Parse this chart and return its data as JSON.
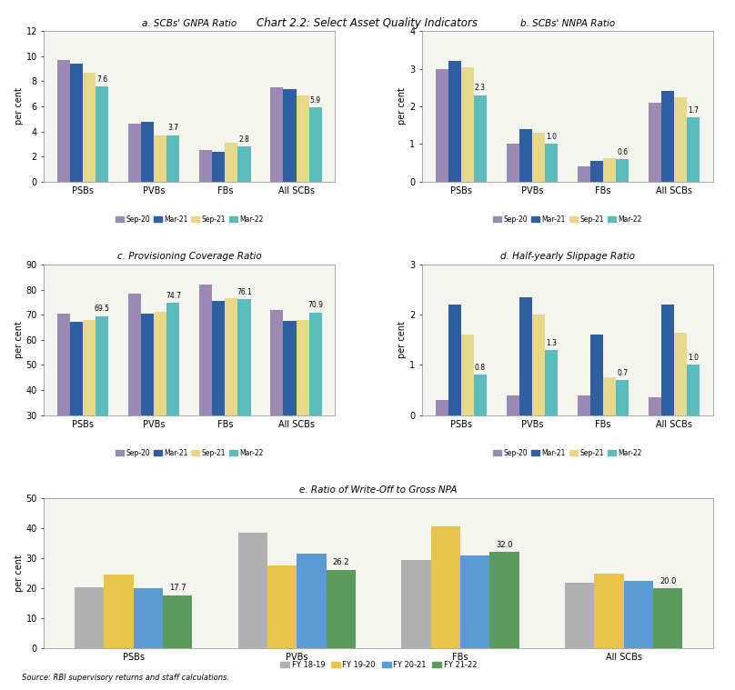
{
  "title": "Chart 2.2: Select Asset Quality Indicators",
  "source": "Source: RBI supervisory returns and staff calculations.",
  "panel_a": {
    "title": "a. SCBs' GNPA Ratio",
    "ylabel": "per cent",
    "categories": [
      "PSBs",
      "PVBs",
      "FBs",
      "All SCBs"
    ],
    "series": {
      "Sep-20": [
        9.7,
        4.6,
        2.5,
        7.5
      ],
      "Mar-21": [
        9.4,
        4.8,
        2.4,
        7.4
      ],
      "Sep-21": [
        8.7,
        3.7,
        3.1,
        6.9
      ],
      "Mar-22": [
        7.6,
        3.7,
        2.8,
        5.9
      ]
    },
    "annotate_last": [
      7.6,
      3.7,
      2.8,
      5.9
    ],
    "ylim": [
      0,
      12
    ],
    "yticks": [
      0,
      2,
      4,
      6,
      8,
      10,
      12
    ],
    "colors": [
      "#9b89b4",
      "#2e5fa3",
      "#e8d88a",
      "#5bbcbe"
    ]
  },
  "panel_b": {
    "title": "b. SCBs' NNPA Ratio",
    "ylabel": "per cent",
    "categories": [
      "PSBs",
      "PVBs",
      "FBs",
      "All SCBs"
    ],
    "series": {
      "Sep-20": [
        3.0,
        1.0,
        0.4,
        2.1
      ],
      "Mar-21": [
        3.2,
        1.4,
        0.55,
        2.4
      ],
      "Sep-21": [
        3.05,
        1.3,
        0.62,
        2.25
      ],
      "Mar-22": [
        2.3,
        1.0,
        0.6,
        1.7
      ]
    },
    "annotate_last": [
      2.3,
      1.0,
      0.6,
      1.7
    ],
    "ylim": [
      0,
      4
    ],
    "yticks": [
      0,
      1,
      2,
      3,
      4
    ],
    "colors": [
      "#9b89b4",
      "#2e5fa3",
      "#e8d88a",
      "#5bbcbe"
    ]
  },
  "panel_c": {
    "title": "c. Provisioning Coverage Ratio",
    "ylabel": "per cent",
    "categories": [
      "PSBs",
      "PVBs",
      "FBs",
      "All SCBs"
    ],
    "series": {
      "Sep-20": [
        70.5,
        78.5,
        82.0,
        72.0
      ],
      "Mar-21": [
        67.0,
        70.5,
        75.5,
        67.5
      ],
      "Sep-21": [
        68.0,
        71.0,
        76.5,
        68.0
      ],
      "Mar-22": [
        69.5,
        74.7,
        76.1,
        70.9
      ]
    },
    "annotate_last": [
      69.5,
      74.7,
      76.1,
      70.9
    ],
    "ylim": [
      30,
      90
    ],
    "yticks": [
      30,
      40,
      50,
      60,
      70,
      80,
      90
    ],
    "colors": [
      "#9b89b4",
      "#2e5fa3",
      "#e8d88a",
      "#5bbcbe"
    ]
  },
  "panel_d": {
    "title": "d. Half-yearly Slippage Ratio",
    "ylabel": "per cent",
    "categories": [
      "PSBs",
      "PVBs",
      "FBs",
      "All SCBs"
    ],
    "series": {
      "H1:20-21": [
        0.3,
        0.4,
        0.4,
        0.35
      ],
      "H2:20-21": [
        2.2,
        2.35,
        1.6,
        2.2
      ],
      "H1:21-22": [
        1.6,
        2.0,
        0.75,
        1.65
      ],
      "H2:21-22": [
        0.8,
        1.3,
        0.7,
        1.0
      ]
    },
    "annotate_last": [
      0.8,
      1.3,
      0.7,
      1.0
    ],
    "ylim": [
      0,
      3
    ],
    "yticks": [
      0,
      1,
      2,
      3
    ],
    "colors": [
      "#9b89b4",
      "#2e5fa3",
      "#e8d88a",
      "#5bbcbe"
    ]
  },
  "panel_e": {
    "title": "e. Ratio of Write-Off to Gross NPA",
    "ylabel": "per cent",
    "categories": [
      "PSBs",
      "PVBs",
      "FBs",
      "All SCBs"
    ],
    "series": {
      "FY 18-19": [
        20.5,
        38.5,
        29.5,
        22.0
      ],
      "FY 19-20": [
        24.5,
        27.5,
        40.5,
        25.0
      ],
      "FY 20-21": [
        20.0,
        31.5,
        31.0,
        22.5
      ],
      "FY 21-22": [
        17.7,
        26.2,
        32.0,
        20.0
      ]
    },
    "annotate_last": [
      17.7,
      26.2,
      32.0,
      20.0
    ],
    "ylim": [
      0,
      50
    ],
    "yticks": [
      0,
      10,
      20,
      30,
      40,
      50
    ],
    "colors": [
      "#b0b0b0",
      "#e8c44a",
      "#5b9bd5",
      "#5a9a5a"
    ]
  },
  "legend_abcd": [
    "Sep-20",
    "Mar-21",
    "Sep-21",
    "Mar-22"
  ],
  "legend_e": [
    "FY 18-19",
    "FY 19-20",
    "FY 20-21",
    "FY 21-22"
  ],
  "colors_abcd": [
    "#9b89b4",
    "#2e5fa3",
    "#e8d88a",
    "#5bbcbe"
  ],
  "colors_e": [
    "#b0b0b0",
    "#e8c44a",
    "#5b9bd5",
    "#5a9a5a"
  ],
  "background_color": "#ffffff",
  "panel_bg": "#f5f5f0",
  "annotation_fontsize": 5.5,
  "axis_fontsize": 7,
  "title_fontsize": 7.5,
  "main_title_fontsize": 8.5
}
